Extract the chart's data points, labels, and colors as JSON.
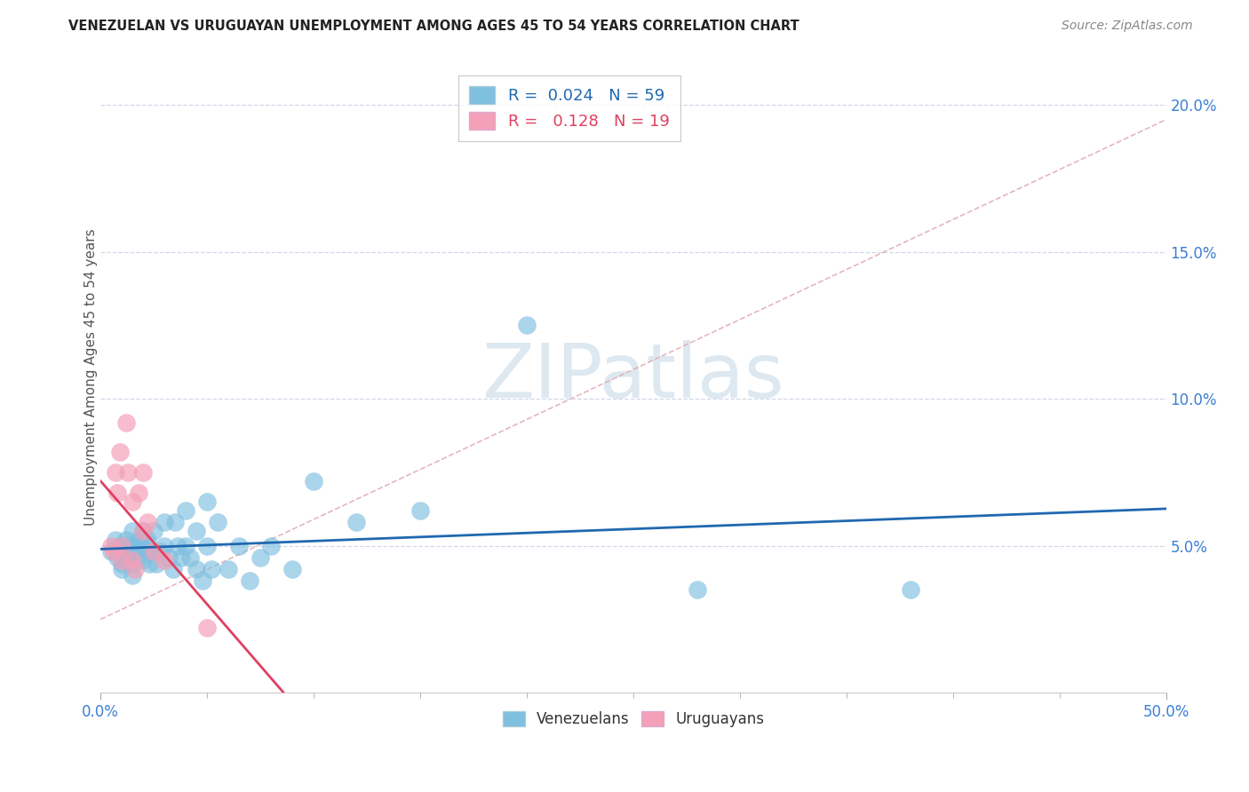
{
  "title": "VENEZUELAN VS URUGUAYAN UNEMPLOYMENT AMONG AGES 45 TO 54 YEARS CORRELATION CHART",
  "source": "Source: ZipAtlas.com",
  "ylabel": "Unemployment Among Ages 45 to 54 years",
  "ytick_vals": [
    0.05,
    0.1,
    0.15,
    0.2
  ],
  "ytick_labels": [
    "5.0%",
    "10.0%",
    "15.0%",
    "20.0%"
  ],
  "xlim": [
    0.0,
    0.5
  ],
  "ylim": [
    0.0,
    0.215
  ],
  "legend_R_blue": "0.024",
  "legend_N_blue": "59",
  "legend_R_pink": "0.128",
  "legend_N_pink": "19",
  "blue_scatter_color": "#7fbfdf",
  "pink_scatter_color": "#f4a0b8",
  "blue_line_color": "#2068b0",
  "pink_line_color": "#e04060",
  "diag_line_color": "#e0b0b8",
  "watermark_text": "ZIPatlas",
  "watermark_color": "#dde8f0",
  "ven_x": [
    0.005,
    0.007,
    0.008,
    0.009,
    0.01,
    0.01,
    0.01,
    0.01,
    0.012,
    0.012,
    0.013,
    0.015,
    0.015,
    0.015,
    0.015,
    0.016,
    0.017,
    0.018,
    0.018,
    0.019,
    0.02,
    0.02,
    0.02,
    0.022,
    0.022,
    0.023,
    0.025,
    0.025,
    0.026,
    0.028,
    0.03,
    0.03,
    0.032,
    0.034,
    0.035,
    0.036,
    0.038,
    0.04,
    0.04,
    0.042,
    0.045,
    0.045,
    0.048,
    0.05,
    0.05,
    0.052,
    0.055,
    0.06,
    0.065,
    0.07,
    0.075,
    0.08,
    0.09,
    0.1,
    0.12,
    0.15,
    0.2,
    0.28,
    0.38
  ],
  "ven_y": [
    0.048,
    0.052,
    0.046,
    0.05,
    0.05,
    0.048,
    0.044,
    0.042,
    0.052,
    0.046,
    0.05,
    0.055,
    0.048,
    0.044,
    0.04,
    0.05,
    0.048,
    0.052,
    0.046,
    0.05,
    0.055,
    0.05,
    0.045,
    0.052,
    0.048,
    0.044,
    0.055,
    0.048,
    0.044,
    0.048,
    0.058,
    0.05,
    0.046,
    0.042,
    0.058,
    0.05,
    0.046,
    0.062,
    0.05,
    0.046,
    0.055,
    0.042,
    0.038,
    0.065,
    0.05,
    0.042,
    0.058,
    0.042,
    0.05,
    0.038,
    0.046,
    0.05,
    0.042,
    0.072,
    0.058,
    0.062,
    0.125,
    0.035,
    0.035
  ],
  "uru_x": [
    0.005,
    0.006,
    0.007,
    0.008,
    0.009,
    0.01,
    0.01,
    0.012,
    0.013,
    0.015,
    0.015,
    0.016,
    0.018,
    0.02,
    0.02,
    0.022,
    0.025,
    0.03,
    0.05
  ],
  "uru_y": [
    0.05,
    0.048,
    0.075,
    0.068,
    0.082,
    0.05,
    0.045,
    0.092,
    0.075,
    0.065,
    0.045,
    0.042,
    0.068,
    0.075,
    0.055,
    0.058,
    0.048,
    0.045,
    0.022
  ]
}
